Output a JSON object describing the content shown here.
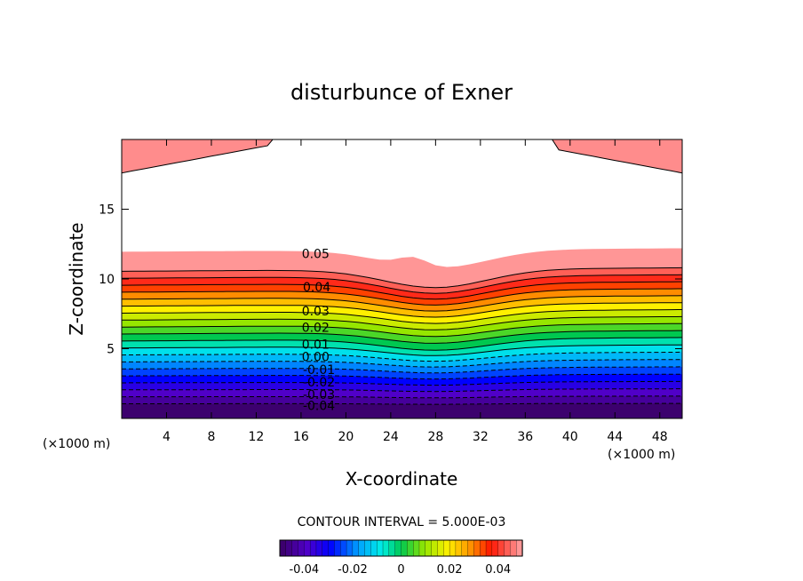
{
  "chart_data": {
    "type": "contour",
    "title": "disturbunce of Exner",
    "xlabel": "X-coordinate",
    "ylabel": "Z-coordinate",
    "x_unit": "(×1000 m)",
    "y_unit": "(×1000 m)",
    "xlim": [
      0,
      50
    ],
    "ylim": [
      0,
      20
    ],
    "x_ticks": [
      4,
      8,
      12,
      16,
      20,
      24,
      28,
      32,
      36,
      40,
      44,
      48
    ],
    "y_ticks": [
      5,
      10,
      15
    ],
    "contour_interval_label": "CONTOUR INTERVAL = 5.000E-03",
    "contour_labels": [
      {
        "text": "0.05",
        "x": 17.3,
        "y": 11.5
      },
      {
        "text": "0.04",
        "x": 17.4,
        "y": 9.1
      },
      {
        "text": "0.03",
        "x": 17.3,
        "y": 7.4
      },
      {
        "text": "0.02",
        "x": 17.3,
        "y": 6.2
      },
      {
        "text": "0.01",
        "x": 17.3,
        "y": 5.0
      },
      {
        "text": "0.00",
        "x": 17.3,
        "y": 4.1
      },
      {
        "text": "-0.01",
        "x": 17.6,
        "y": 3.2
      },
      {
        "text": "-0.02",
        "x": 17.6,
        "y": 2.3
      },
      {
        "text": "-0.03",
        "x": 17.6,
        "y": 1.4
      },
      {
        "text": "-0.04",
        "x": 17.6,
        "y": 0.6
      }
    ],
    "colorbar": {
      "range": [
        -0.05,
        0.05
      ],
      "ticks": [
        "-0.04",
        "-0.02",
        "0",
        "0.02",
        "0.04"
      ]
    },
    "grid": false
  }
}
